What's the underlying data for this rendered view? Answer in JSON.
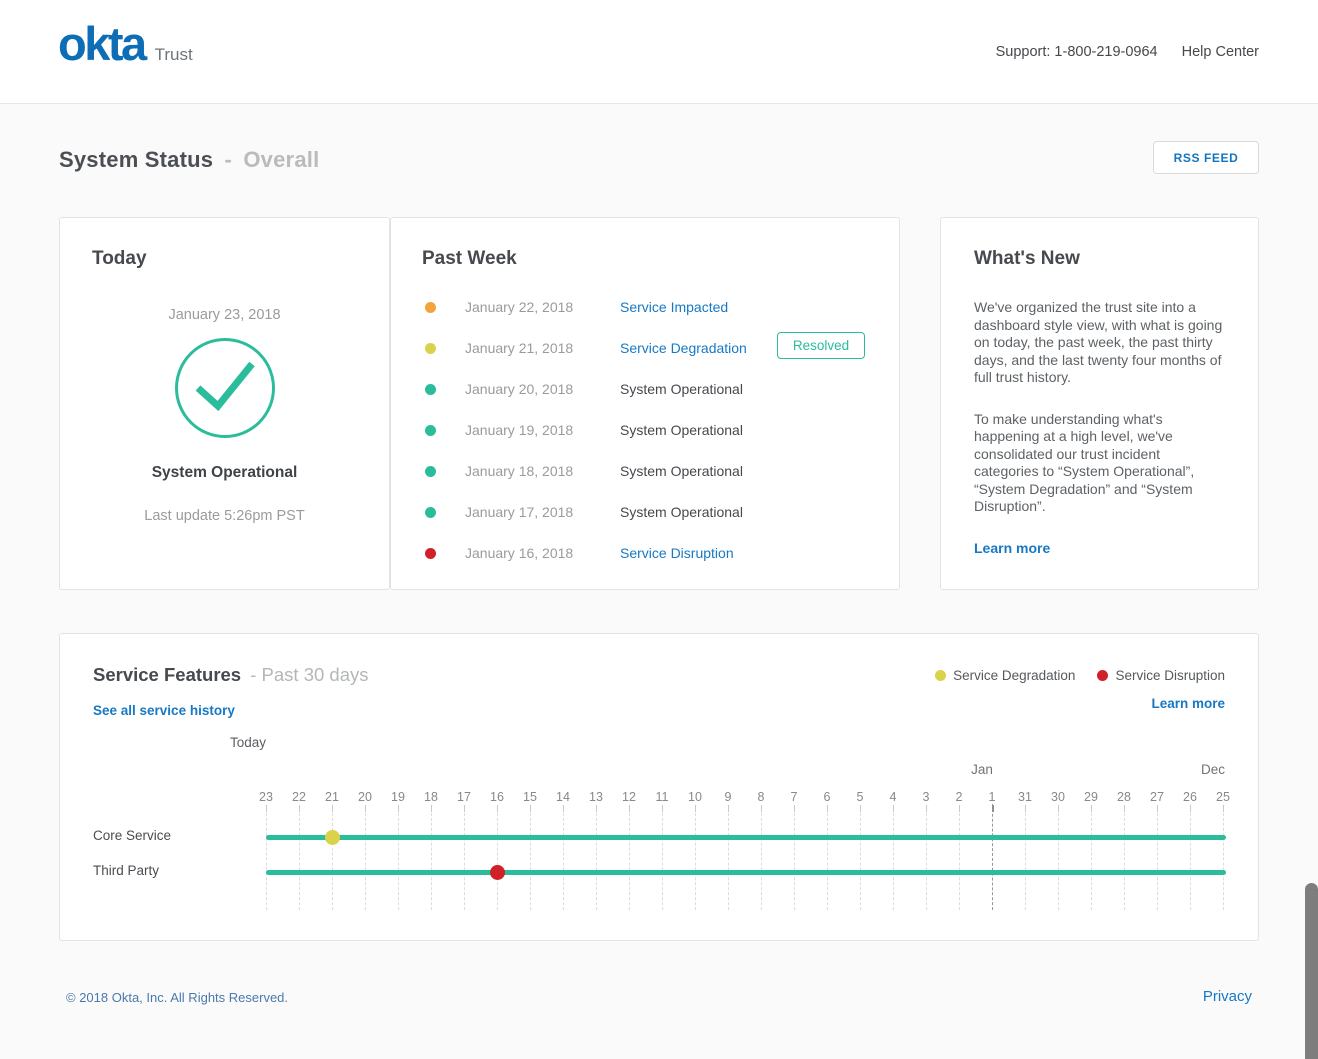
{
  "header": {
    "logo": "okta",
    "logo_suffix": "Trust",
    "support": "Support: 1-800-219-0964",
    "help_center": "Help Center"
  },
  "page": {
    "title": "System Status",
    "separator": "-",
    "subtitle": "Overall",
    "rss_button": "RSS FEED"
  },
  "today_panel": {
    "heading": "Today",
    "date": "January 23, 2018",
    "status": "System Operational",
    "last_update": "Last update 5:26pm PST"
  },
  "past_week_panel": {
    "heading": "Past Week",
    "items": [
      {
        "date": "January 22, 2018",
        "status": "Service Impacted",
        "dot_color": "#f2a33c",
        "link": true,
        "badge": null
      },
      {
        "date": "January 21, 2018",
        "status": "Service Degradation",
        "dot_color": "#dbd24b",
        "link": true,
        "badge": "Resolved"
      },
      {
        "date": "January 20, 2018",
        "status": "System Operational",
        "dot_color": "#2bbd9b",
        "link": false,
        "badge": null
      },
      {
        "date": "January 19, 2018",
        "status": "System Operational",
        "dot_color": "#2bbd9b",
        "link": false,
        "badge": null
      },
      {
        "date": "January 18, 2018",
        "status": "System Operational",
        "dot_color": "#2bbd9b",
        "link": false,
        "badge": null
      },
      {
        "date": "January 17, 2018",
        "status": "System Operational",
        "dot_color": "#2bbd9b",
        "link": false,
        "badge": null
      },
      {
        "date": "January 16, 2018",
        "status": "Service Disruption",
        "dot_color": "#d0202a",
        "link": true,
        "badge": null
      }
    ]
  },
  "whats_new_panel": {
    "heading": "What's New",
    "paragraph1": "We've organized the trust site into a dashboard style view, with what is going on today, the past week, the past thirty days, and the last twenty four months of full trust history.",
    "paragraph2": "To make understanding what's happening at a high level, we've consolidated our trust incident categories to “System Operational”, “System Degradation” and “System Disruption”.",
    "learn_more": "Learn more"
  },
  "service_features": {
    "title": "Service Features",
    "title_suffix": "- Past 30 days",
    "see_all_link": "See all service history",
    "learn_more": "Learn more",
    "legend": [
      {
        "label": "Service Degradation",
        "color": "#dbd24b"
      },
      {
        "label": "Service Disruption",
        "color": "#d0202a"
      }
    ]
  },
  "chart_data": {
    "type": "timeline",
    "title": "Service Features - Past 30 days",
    "today_label": "Today",
    "days": [
      23,
      22,
      21,
      20,
      19,
      18,
      17,
      16,
      15,
      14,
      13,
      12,
      11,
      10,
      9,
      8,
      7,
      6,
      5,
      4,
      3,
      2,
      1,
      31,
      30,
      29,
      28,
      27,
      26,
      25
    ],
    "month_labels": [
      {
        "label": "Jan",
        "day": 1
      },
      {
        "label": "Dec",
        "day": 25
      }
    ],
    "month_boundary_day": 1,
    "rows": [
      {
        "label": "Core Service",
        "line_color": "#2bbd9b",
        "incidents": [
          {
            "day": 21,
            "type": "Service Degradation",
            "color": "#dbd24b"
          }
        ]
      },
      {
        "label": "Third Party",
        "line_color": "#2bbd9b",
        "incidents": [
          {
            "day": 16,
            "type": "Service Disruption",
            "color": "#d0202a"
          }
        ]
      }
    ],
    "grid": "dashed-vertical-per-day",
    "legend_position": "top-right"
  },
  "footer": {
    "copyright": "© 2018 Okta, Inc. All Rights Reserved.",
    "privacy": "Privacy"
  },
  "colors": {
    "brand_blue": "#0d6db5",
    "link_blue": "#1779c4",
    "operational_green": "#2bbd9b",
    "degradation_yellow": "#dbd24b",
    "impacted_orange": "#f2a33c",
    "disruption_red": "#d0202a",
    "page_background": "#fafafa"
  }
}
